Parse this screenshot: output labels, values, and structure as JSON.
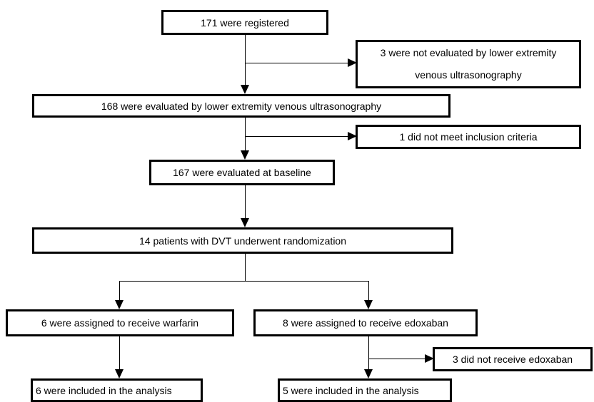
{
  "flowchart": {
    "registered": "171 were registered",
    "not_evaluated": {
      "line1": "3 were not evaluated by lower extremity",
      "line2": "venous ultrasonography"
    },
    "evaluated_ultrasonography": "168 were evaluated by lower extremity venous ultrasonography",
    "not_meet_criteria": "1 did not meet inclusion criteria",
    "baseline": "167 were evaluated at baseline",
    "randomization": "14 patients with DVT underwent randomization",
    "warfarin_arm": {
      "assigned": "6 were assigned to receive warfarin",
      "analyzed": "6 were included in the analysis"
    },
    "edoxaban_arm": {
      "assigned": "8 were assigned to receive edoxaban",
      "excluded": "3 did not receive edoxaban",
      "analyzed": "5 were included in the analysis"
    }
  }
}
